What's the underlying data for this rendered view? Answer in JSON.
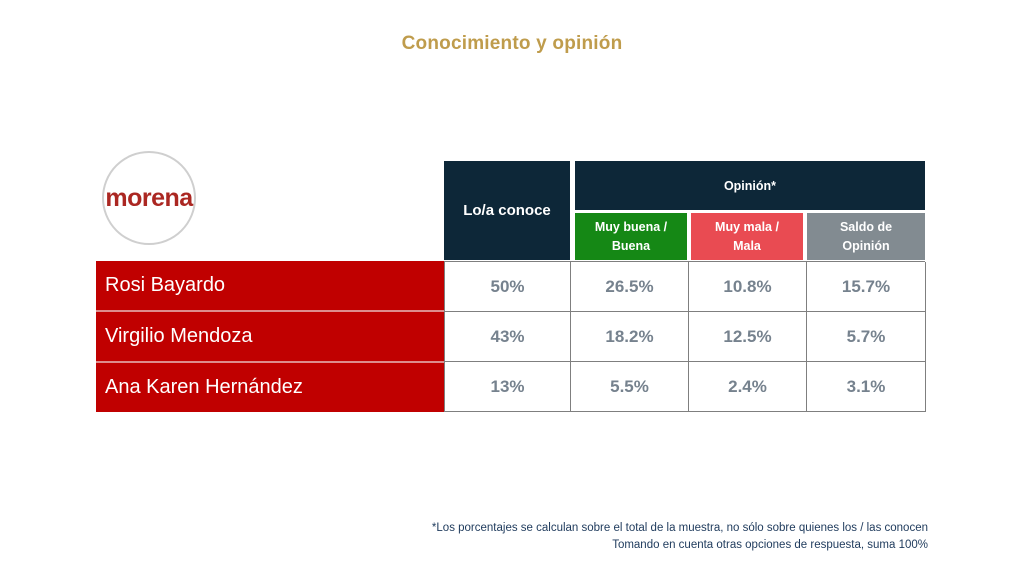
{
  "slide": {
    "title": "Conocimiento y opinión"
  },
  "logo": {
    "text": "morena"
  },
  "table": {
    "col_conoce": "Lo/a conoce",
    "col_opinion": "Opinión*",
    "subcols": [
      {
        "line1": "Muy buena /",
        "line2": "Buena",
        "color": "#158815"
      },
      {
        "line1": "Muy mala /",
        "line2": "Mala",
        "color": "#e94b52"
      },
      {
        "line1": "Saldo de",
        "line2": "Opinión",
        "color": "#828b91"
      }
    ],
    "rows": [
      {
        "name": "Rosi Bayardo",
        "conoce": "50%",
        "buena": "26.5%",
        "mala": "10.8%",
        "saldo": "15.7%"
      },
      {
        "name": "Virgilio Mendoza",
        "conoce": "43%",
        "buena": "18.2%",
        "mala": "12.5%",
        "saldo": "5.7%"
      },
      {
        "name": "Ana Karen Hernández",
        "conoce": "13%",
        "buena": "5.5%",
        "mala": "2.4%",
        "saldo": "3.1%"
      }
    ]
  },
  "footnote": {
    "line1": "*Los porcentajes se calculan sobre el total de la muestra, no sólo sobre quienes los / las conocen",
    "line2": "Tomando en cuenta otras opciones de respuesta, suma 100%"
  },
  "colors": {
    "title_gold": "#bf9c4c",
    "header_navy": "#0d2738",
    "good_green": "#158815",
    "bad_red": "#e94b52",
    "saldo_gray": "#828b91",
    "row_red": "#c00000",
    "value_gray": "#76828e",
    "footnote_navy": "#1e3a5c",
    "morena_red": "#ab2722"
  },
  "chart_data": {
    "type": "table",
    "title": "Conocimiento y opinión",
    "columns": [
      "",
      "Lo/a conoce",
      "Opinión* Muy buena / Buena",
      "Opinión* Muy mala / Mala",
      "Opinión* Saldo de Opinión"
    ],
    "rows": [
      {
        "name": "Rosi Bayardo",
        "lo_a_conoce_pct": 50,
        "muy_buena_buena_pct": 26.5,
        "muy_mala_mala_pct": 10.8,
        "saldo_de_opinion_pct": 15.7
      },
      {
        "name": "Virgilio Mendoza",
        "lo_a_conoce_pct": 43,
        "muy_buena_buena_pct": 18.2,
        "muy_mala_mala_pct": 12.5,
        "saldo_de_opinion_pct": 5.7
      },
      {
        "name": "Ana Karen Hernández",
        "lo_a_conoce_pct": 13,
        "muy_buena_buena_pct": 5.5,
        "muy_mala_mala_pct": 2.4,
        "saldo_de_opinion_pct": 3.1
      }
    ],
    "footnotes": [
      "*Los porcentajes se calculan sobre el total de la muestra, no sólo sobre quienes los / las conocen",
      "Tomando en cuenta otras opciones de respuesta, suma 100%"
    ]
  }
}
